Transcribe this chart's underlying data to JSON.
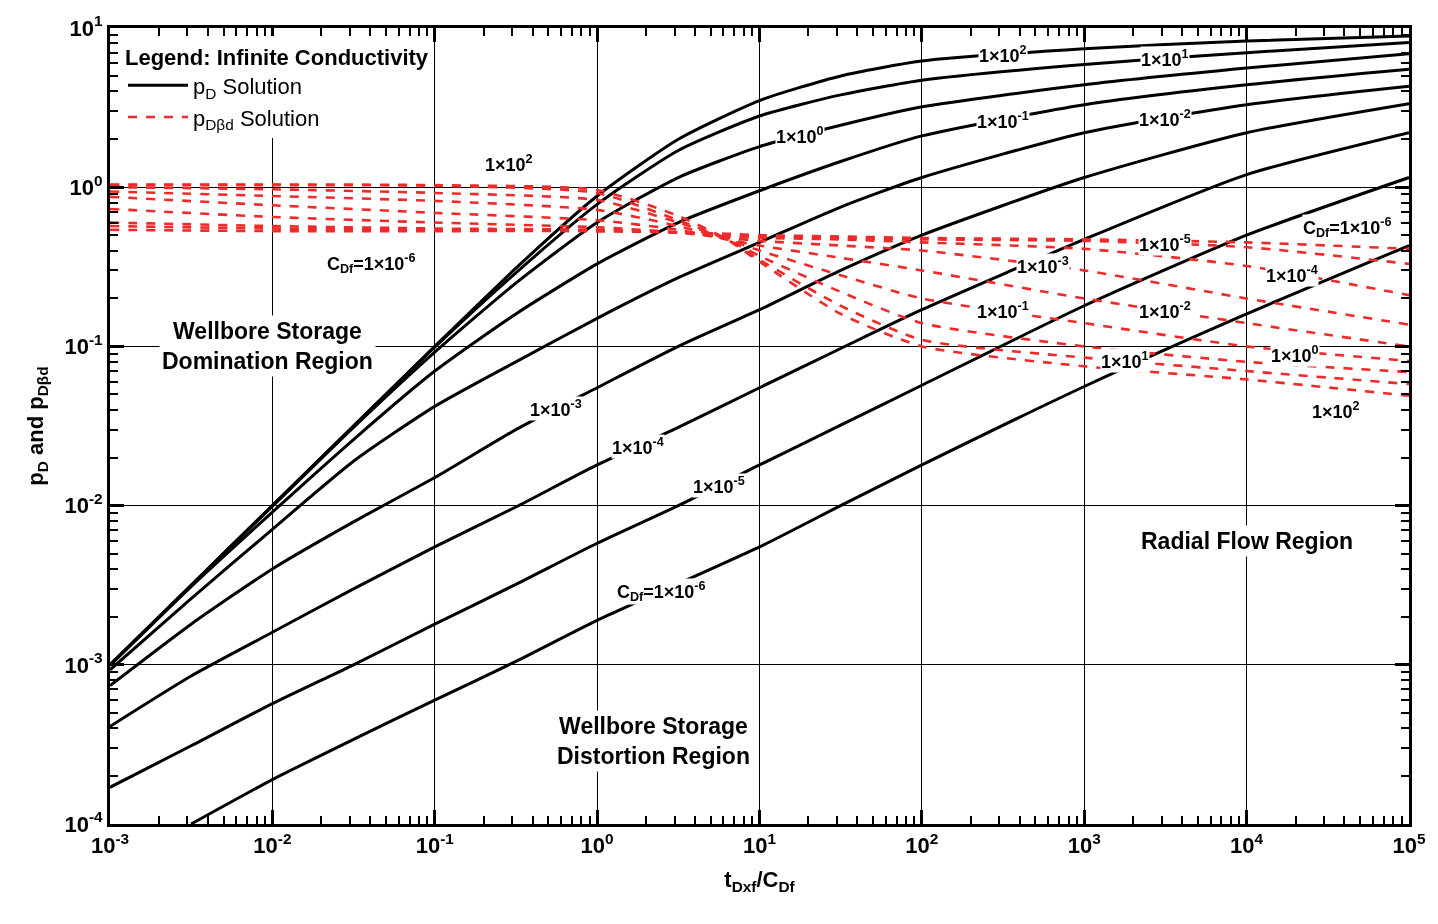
{
  "chart_data": {
    "type": "line",
    "xlabel": "t$_{Dxf}$/C$_{Df}$",
    "ylabel": "p$_{D}$ and p$_{Dβd}$",
    "legend_title": "Legend: Infinite Conductivity",
    "legend": "top left",
    "log": "xy",
    "grid": true,
    "xlim": [
      0.001,
      100000
    ],
    "ylim": [
      0.0001,
      10
    ],
    "xticks": [
      {
        "value": 0.001,
        "label": "10$^{-3}$"
      },
      {
        "value": 0.01,
        "label": "10$^{-2}$"
      },
      {
        "value": 0.1,
        "label": "10$^{-1}$"
      },
      {
        "value": 1,
        "label": "10$^{0}$"
      },
      {
        "value": 10,
        "label": "10$^{1}$"
      },
      {
        "value": 100,
        "label": "10$^{2}$"
      },
      {
        "value": 1000,
        "label": "10$^{3}$"
      },
      {
        "value": 10000,
        "label": "10$^{4}$"
      },
      {
        "value": 100000,
        "label": "10$^{5}$"
      }
    ],
    "yticks": [
      {
        "value": 0.0001,
        "label": "10$^{-4}$"
      },
      {
        "value": 0.001,
        "label": "10$^{-3}$"
      },
      {
        "value": 0.01,
        "label": "10$^{-2}$"
      },
      {
        "value": 0.1,
        "label": "10$^{-1}$"
      },
      {
        "value": 1,
        "label": "10$^{0}$"
      },
      {
        "value": 10,
        "label": "10$^{1}$"
      }
    ],
    "series": [
      {
        "name": "p$_{D}$ Solution",
        "color": "#000000",
        "line_style": "solid",
        "x": [
          0.001,
          0.00316,
          0.01,
          0.0316,
          0.1,
          0.316,
          1,
          3.16,
          10,
          31.6,
          100,
          1000,
          10000,
          100000
        ],
        "values": [
          0.001,
          0.00316,
          0.01,
          0.0316,
          0.1,
          0.31,
          0.88,
          2.0,
          3.5,
          5.0,
          6.2,
          7.4,
          8.3,
          8.9
        ]
      },
      {
        "color": "#000000",
        "line_style": "solid",
        "x": [
          0.001,
          0.00316,
          0.01,
          0.0316,
          0.1,
          0.316,
          1,
          3.16,
          10,
          31.6,
          100,
          1000,
          10000,
          100000
        ],
        "values": [
          0.001,
          0.00316,
          0.01,
          0.0316,
          0.099,
          0.29,
          0.78,
          1.7,
          2.8,
          3.8,
          4.7,
          5.9,
          7.0,
          8.1
        ]
      },
      {
        "color": "#000000",
        "line_style": "solid",
        "x": [
          0.001,
          0.00316,
          0.01,
          0.0316,
          0.1,
          0.316,
          1,
          3.16,
          10,
          31.6,
          100,
          1000,
          10000,
          100000
        ],
        "values": [
          0.001,
          0.00315,
          0.0099,
          0.031,
          0.092,
          0.25,
          0.6,
          1.15,
          1.8,
          2.45,
          3.2,
          4.4,
          5.6,
          6.9
        ]
      },
      {
        "color": "#000000",
        "line_style": "solid",
        "x": [
          0.001,
          0.00316,
          0.01,
          0.0316,
          0.1,
          0.316,
          1,
          3.16,
          10,
          31.6,
          100,
          1000,
          10000,
          100000
        ],
        "values": [
          0.00099,
          0.0031,
          0.0091,
          0.026,
          0.07,
          0.16,
          0.33,
          0.6,
          0.95,
          1.45,
          2.1,
          3.3,
          4.4,
          5.5
        ]
      },
      {
        "color": "#000000",
        "line_style": "solid",
        "x": [
          0.001,
          0.00316,
          0.01,
          0.0316,
          0.1,
          0.316,
          1,
          3.16,
          10,
          31.6,
          100,
          1000,
          10000,
          100000
        ],
        "values": [
          0.00093,
          0.0026,
          0.0071,
          0.019,
          0.042,
          0.08,
          0.15,
          0.27,
          0.45,
          0.75,
          1.15,
          2.2,
          3.3,
          4.3
        ]
      },
      {
        "color": "#000000",
        "line_style": "solid",
        "x": [
          0.001,
          0.00316,
          0.01,
          0.0316,
          0.1,
          0.316,
          1,
          3.16,
          10,
          31.6,
          100,
          1000,
          10000,
          100000
        ],
        "values": [
          0.00074,
          0.0018,
          0.004,
          0.0079,
          0.015,
          0.03,
          0.055,
          0.1,
          0.17,
          0.3,
          0.5,
          1.15,
          2.2,
          3.35
        ]
      },
      {
        "color": "#000000",
        "line_style": "solid",
        "x": [
          0.001,
          0.00316,
          0.01,
          0.0316,
          0.1,
          0.316,
          1,
          3.16,
          10,
          31.6,
          100,
          1000,
          10000,
          100000
        ],
        "values": [
          0.00041,
          0.00085,
          0.0016,
          0.003,
          0.0055,
          0.0098,
          0.018,
          0.031,
          0.055,
          0.097,
          0.17,
          0.47,
          1.2,
          2.2
        ]
      },
      {
        "color": "#000000",
        "line_style": "solid",
        "x": [
          0.001,
          0.00316,
          0.01,
          0.0316,
          0.1,
          0.316,
          1,
          3.16,
          10,
          31.6,
          100,
          1000,
          10000,
          100000
        ],
        "values": [
          0.00017,
          0.00031,
          0.00057,
          0.001,
          0.0018,
          0.0032,
          0.0058,
          0.01,
          0.018,
          0.032,
          0.057,
          0.18,
          0.5,
          1.15
        ]
      },
      {
        "color": "#000000",
        "line_style": "solid",
        "x": [
          0.00316,
          0.01,
          0.0316,
          0.1,
          0.316,
          1,
          10,
          31.6,
          100,
          1000,
          10000,
          100000
        ],
        "values": [
          0.0001,
          0.00019,
          0.00034,
          0.0006,
          0.00105,
          0.0019,
          0.0055,
          0.01,
          0.018,
          0.056,
          0.16,
          0.43
        ]
      },
      {
        "name": "p$_{Dβd}$ Solution",
        "color": "#ee2a2a",
        "line_style": "dashed",
        "x": [
          0.001,
          0.01,
          0.1,
          1,
          3.16,
          6.3,
          10,
          31.6,
          100,
          1000,
          10000,
          100000
        ],
        "values": [
          1.04,
          1.04,
          1.03,
          0.96,
          0.66,
          0.47,
          0.34,
          0.16,
          0.1,
          0.075,
          0.062,
          0.049
        ]
      },
      {
        "color": "#ee2a2a",
        "line_style": "dashed",
        "x": [
          0.001,
          0.01,
          0.1,
          1,
          3.16,
          6.3,
          10,
          31.6,
          100,
          1000,
          10000,
          100000
        ],
        "values": [
          1.03,
          1.03,
          1.02,
          0.92,
          0.62,
          0.47,
          0.35,
          0.18,
          0.11,
          0.085,
          0.07,
          0.058
        ]
      },
      {
        "color": "#ee2a2a",
        "line_style": "dashed",
        "x": [
          0.001,
          0.01,
          0.1,
          1,
          3.16,
          6.3,
          10,
          31.6,
          100,
          1000,
          10000,
          100000
        ],
        "values": [
          1.0,
          0.97,
          0.92,
          0.83,
          0.6,
          0.47,
          0.37,
          0.22,
          0.14,
          0.1,
          0.08,
          0.069
        ]
      },
      {
        "color": "#ee2a2a",
        "line_style": "dashed",
        "x": [
          0.001,
          0.01,
          0.1,
          1,
          3.16,
          6.3,
          10,
          31.6,
          100,
          1000,
          10000,
          100000
        ],
        "values": [
          0.94,
          0.88,
          0.82,
          0.72,
          0.57,
          0.47,
          0.4,
          0.28,
          0.2,
          0.14,
          0.1,
          0.081
        ]
      },
      {
        "color": "#ee2a2a",
        "line_style": "dashed",
        "x": [
          0.001,
          0.01,
          0.1,
          1,
          3.16,
          6.3,
          10,
          31.6,
          100,
          1000,
          10000,
          100000
        ],
        "values": [
          0.87,
          0.77,
          0.69,
          0.62,
          0.54,
          0.47,
          0.43,
          0.36,
          0.3,
          0.2,
          0.14,
          0.1
        ]
      },
      {
        "color": "#ee2a2a",
        "line_style": "dashed",
        "x": [
          0.001,
          0.01,
          0.1,
          1,
          3.16,
          6.3,
          10,
          31.6,
          100,
          1000,
          10000,
          100000
        ],
        "values": [
          0.73,
          0.65,
          0.6,
          0.56,
          0.52,
          0.48,
          0.46,
          0.43,
          0.4,
          0.3,
          0.2,
          0.137
        ]
      },
      {
        "color": "#ee2a2a",
        "line_style": "dashed",
        "x": [
          0.001,
          0.01,
          0.1,
          1,
          3.16,
          6.3,
          10,
          31.6,
          100,
          1000,
          10000,
          100000
        ],
        "values": [
          0.6,
          0.57,
          0.55,
          0.54,
          0.52,
          0.49,
          0.48,
          0.47,
          0.45,
          0.41,
          0.32,
          0.21
        ]
      },
      {
        "color": "#ee2a2a",
        "line_style": "dashed",
        "x": [
          0.001,
          0.01,
          0.1,
          1,
          3.16,
          6.3,
          10,
          31.6,
          100,
          1000,
          10000,
          100000
        ],
        "values": [
          0.57,
          0.55,
          0.54,
          0.53,
          0.52,
          0.5,
          0.49,
          0.48,
          0.47,
          0.46,
          0.42,
          0.33
        ]
      },
      {
        "color": "#ee2a2a",
        "line_style": "dashed",
        "x": [
          0.001,
          0.01,
          0.1,
          1,
          3.16,
          6.3,
          10,
          31.6,
          100,
          1000,
          10000,
          100000
        ],
        "values": [
          0.54,
          0.53,
          0.53,
          0.53,
          0.52,
          0.51,
          0.5,
          0.49,
          0.48,
          0.47,
          0.45,
          0.41
        ]
      }
    ],
    "annotations": [
      {
        "text": "1×10$^{2}$",
        "x": 316,
        "y": 6.8
      },
      {
        "text": "1×10$^{1}$",
        "x": 3160,
        "y": 6.4
      },
      {
        "text": "1×10$^{0}$",
        "x": 17.8,
        "y": 2.1
      },
      {
        "text": "1×10$^{-1}$",
        "x": 316,
        "y": 2.63
      },
      {
        "text": "1×10$^{-2}$",
        "x": 3160,
        "y": 2.7
      },
      {
        "text": "1×10$^{-3}$",
        "x": 0.56,
        "y": 0.041
      },
      {
        "text": "1×10$^{-4}$",
        "x": 1.78,
        "y": 0.0236
      },
      {
        "text": "1×10$^{-5}$",
        "x": 5.6,
        "y": 0.0134
      },
      {
        "text": "C$_{Df}$=1×10$^{-6}$",
        "x": 2.5,
        "y": 0.0029
      },
      "1×10$^{2}$",
      "C$_{Df}$=1×10$^{-6}$",
      {
        "text": "1×10$^{-5}$",
        "x": 3160,
        "y": 0.44
      },
      {
        "text": "1×10$^{-3}$",
        "x": 560,
        "y": 0.32
      },
      "1×10$^{-4}$",
      {
        "text": "1×10$^{-1}$",
        "x": 316,
        "y": 0.167
      },
      {
        "text": "1×10$^{-2}$",
        "x": 3160,
        "y": 0.167
      },
      {
        "text": "1×10$^{1}$",
        "x": 1780,
        "y": 0.081
      },
      "1×10$^{0}$",
      "1×10$^{2}$",
      "C$_{Df}$=1×10$^{-6}$",
      "Wellbore Storage\nDomination Region",
      "Wellbore Storage\nDistortion Region",
      "Radial Flow Region"
    ]
  }
}
